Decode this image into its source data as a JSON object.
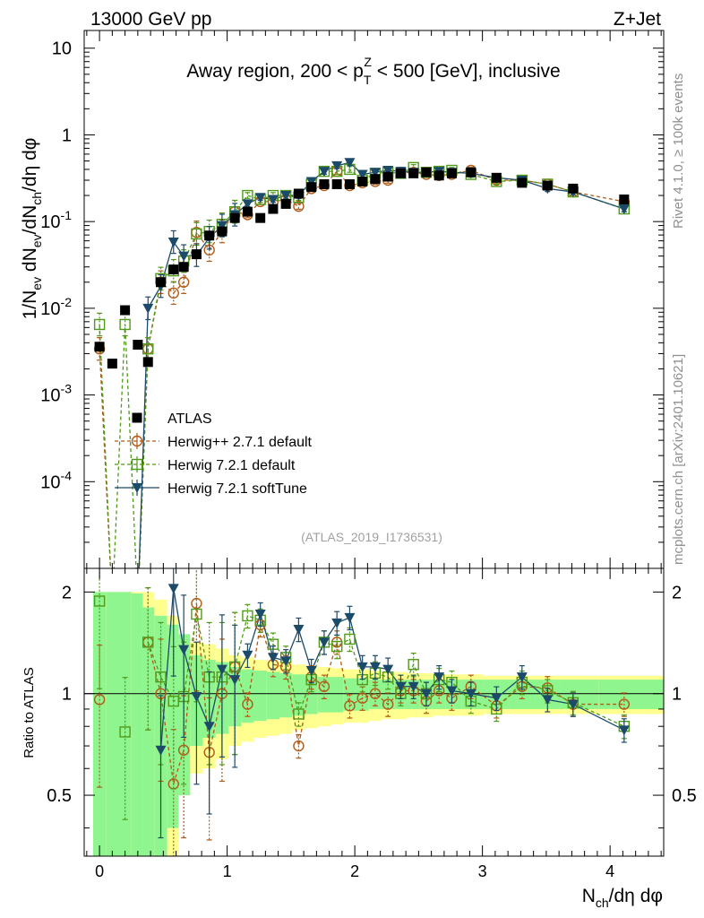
{
  "header": {
    "left": "13000 GeV pp",
    "right": "Z+Jet"
  },
  "side_text": {
    "rivet": "Rivet 4.1.0, ≥ 100k events",
    "mcplots": "mcplots.cern.ch [arXiv:2401.10621]"
  },
  "chart_data": {
    "type": "scatter",
    "title": "Away region, 200 < pT^Z < 500 [GeV], inclusive",
    "title_parts": {
      "pre": "Away region, 200 < p",
      "sub": "T",
      "sup": "Z",
      "post": " < 500 [GeV], inclusive"
    },
    "ylabel": "1/Nev dNev/dNch/dη dφ",
    "ylabel_parts": {
      "a": "1/N",
      "b": "ev",
      "c": " dN",
      "d": "ev",
      "e": "/dN",
      "f": "ch",
      "g": "/dη dφ"
    },
    "xlabel": "Nch/dη dφ",
    "xlabel_parts": {
      "a": "N",
      "b": "ch",
      "c": "/dη dφ"
    },
    "ratio_ylabel": "Ratio to ATLAS",
    "analysis_id": "(ATLAS_2019_I1736531)",
    "xlim": [
      -0.12,
      4.42
    ],
    "ylim_log": [
      1e-05,
      16
    ],
    "ratio_ylim": [
      0.33,
      2.35
    ],
    "x_ticks": [
      0,
      1,
      2,
      3,
      4
    ],
    "x_tick_labels": [
      "0",
      "1",
      "2",
      "3",
      "4"
    ],
    "y_ticks": [
      {
        "exp": "-4",
        "value": 0.0001
      },
      {
        "exp": "-3",
        "value": 0.001
      },
      {
        "exp": "-2",
        "value": 0.01
      },
      {
        "exp": "-1",
        "value": 0.1
      },
      {
        "exp": "",
        "value": 1,
        "text": "1"
      },
      {
        "exp": "",
        "value": 10,
        "text": "10"
      }
    ],
    "ratio_ticks": [
      {
        "value": 0.5,
        "label": "0.5"
      },
      {
        "value": 1,
        "label": "1"
      },
      {
        "value": 2,
        "label": "2"
      }
    ],
    "x": [
      0,
      0.1,
      0.2,
      0.3,
      0.38,
      0.48,
      0.58,
      0.66,
      0.76,
      0.86,
      0.96,
      1.06,
      1.16,
      1.26,
      1.36,
      1.46,
      1.56,
      1.66,
      1.76,
      1.86,
      1.96,
      2.06,
      2.16,
      2.26,
      2.36,
      2.46,
      2.56,
      2.66,
      2.76,
      2.91,
      3.11,
      3.31,
      3.51,
      3.71,
      4.11
    ],
    "series": [
      {
        "name": "ATLAS",
        "color": "#000000",
        "marker": "square",
        "values": [
          0.0036,
          0.0023,
          0.0095,
          0.0038,
          0.0024,
          0.02,
          0.028,
          0.03,
          0.042,
          0.069,
          0.077,
          0.11,
          0.13,
          0.11,
          0.14,
          0.16,
          0.21,
          0.25,
          0.27,
          0.27,
          0.27,
          0.29,
          0.31,
          0.33,
          0.36,
          0.36,
          0.37,
          0.34,
          0.36,
          0.37,
          0.32,
          0.28,
          0.26,
          0.24,
          0.18
        ],
        "band_inner": [
          1.0,
          1.0,
          1.0,
          0.98,
          0.8,
          0.7,
          0.6,
          0.5,
          0.3,
          0.26,
          0.24,
          0.2,
          0.18,
          0.17,
          0.16,
          0.15,
          0.14,
          0.13,
          0.12,
          0.12,
          0.11,
          0.11,
          0.1,
          0.1,
          0.1,
          0.1,
          0.1,
          0.1,
          0.1,
          0.1,
          0.1,
          0.1,
          0.1,
          0.1,
          0.1
        ],
        "band_outer": [
          1.0,
          1.0,
          1.0,
          1.0,
          1.0,
          0.9,
          0.7,
          0.5,
          0.42,
          0.4,
          0.36,
          0.3,
          0.28,
          0.26,
          0.25,
          0.24,
          0.22,
          0.21,
          0.2,
          0.19,
          0.18,
          0.18,
          0.17,
          0.16,
          0.16,
          0.15,
          0.15,
          0.14,
          0.14,
          0.14,
          0.13,
          0.13,
          0.13,
          0.13,
          0.13
        ]
      },
      {
        "name": "Herwig++ 2.7.1 default",
        "color": "#b25a17",
        "marker": "circle",
        "values": [
          0.0034,
          0,
          0,
          0,
          0.0034,
          0.02,
          0.015,
          0.02,
          0.075,
          0.047,
          0.077,
          0.13,
          0.12,
          0.17,
          0.17,
          0.18,
          0.15,
          0.24,
          0.26,
          0.38,
          0.26,
          0.28,
          0.29,
          0.3,
          0.37,
          0.37,
          0.35,
          0.34,
          0.35,
          0.39,
          0.3,
          0.3,
          0.27,
          0.22,
          0.17
        ],
        "ratio": [
          0.96,
          null,
          null,
          null,
          1.42,
          1.0,
          0.54,
          0.68,
          1.85,
          0.67,
          1.0,
          1.2,
          0.93,
          1.6,
          1.22,
          1.2,
          0.7,
          1.12,
          1.05,
          1.42,
          0.92,
          0.97,
          1.0,
          0.93,
          1.02,
          1.02,
          0.95,
          1.02,
          0.97,
          1.05,
          0.92,
          1.05,
          1.04,
          0.93,
          0.93
        ]
      },
      {
        "name": "Herwig 7.2.1 default",
        "color": "#4f9a18",
        "marker": "square-open",
        "values": [
          0.0065,
          0,
          0.0065,
          0,
          0.0034,
          0.022,
          0.027,
          0.035,
          0.072,
          0.077,
          0.093,
          0.13,
          0.2,
          0.18,
          0.2,
          0.2,
          0.19,
          0.27,
          0.38,
          0.38,
          0.4,
          0.3,
          0.36,
          0.37,
          0.36,
          0.42,
          0.37,
          0.38,
          0.39,
          0.35,
          0.29,
          0.3,
          0.27,
          0.22,
          0.14
        ],
        "ratio": [
          1.88,
          null,
          0.77,
          null,
          1.42,
          1.12,
          0.95,
          0.98,
          1.72,
          1.12,
          1.12,
          1.2,
          1.7,
          1.65,
          1.4,
          1.28,
          0.87,
          1.1,
          1.42,
          1.38,
          1.45,
          1.1,
          1.15,
          1.12,
          1.0,
          1.22,
          1.0,
          1.1,
          1.08,
          0.95,
          0.9,
          1.08,
          1.02,
          0.94,
          0.8
        ]
      },
      {
        "name": "Herwig 7.2.1 softTune",
        "color": "#1c4a69",
        "marker": "triangle-down",
        "values": [
          0,
          0,
          0,
          0,
          0.01,
          0.018,
          0.058,
          0.04,
          0.041,
          0.065,
          0.09,
          0.12,
          0.16,
          0.19,
          0.18,
          0.2,
          0.2,
          0.29,
          0.38,
          0.44,
          0.48,
          0.35,
          0.37,
          0.39,
          0.38,
          0.37,
          0.37,
          0.38,
          0.37,
          0.36,
          0.32,
          0.3,
          0.24,
          0.22,
          0.14
        ],
        "ratio": [
          null,
          null,
          null,
          null,
          null,
          0.68,
          2.05,
          1.35,
          0.98,
          0.8,
          1.18,
          1.1,
          1.3,
          1.72,
          1.28,
          1.25,
          1.55,
          1.17,
          1.42,
          1.62,
          1.68,
          1.2,
          1.2,
          1.18,
          1.05,
          1.05,
          1.0,
          1.12,
          1.02,
          1.0,
          0.97,
          1.12,
          0.96,
          0.93,
          0.78
        ]
      }
    ],
    "legend_location": "lower-left of main panel"
  }
}
